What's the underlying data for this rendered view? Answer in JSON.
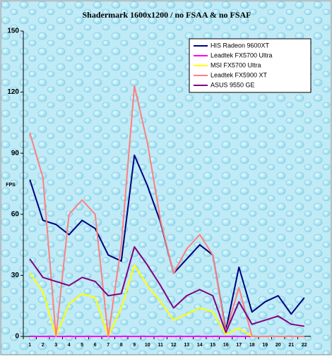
{
  "chart_data": {
    "type": "line",
    "title": "Shadermark 1600x1200 / no FSAA & no FSAF",
    "y_label": "FPS",
    "categories": [
      "1",
      "2",
      "3",
      "4",
      "5",
      "6",
      "7",
      "8",
      "9",
      "10",
      "11",
      "12",
      "13",
      "14",
      "15",
      "16",
      "17",
      "18",
      "19",
      "20",
      "21",
      "22"
    ],
    "ylim": [
      0,
      150
    ],
    "yticks": [
      0,
      30,
      60,
      90,
      120,
      150
    ],
    "legend": "top-right",
    "series": [
      {
        "name": "HIS Radeon 9600XT",
        "color": "#000080",
        "values": [
          77,
          57,
          55,
          50,
          57,
          53,
          40,
          37,
          89,
          74,
          56,
          31,
          38,
          45,
          40,
          3,
          34,
          12,
          17,
          20,
          11,
          19
        ]
      },
      {
        "name": "Leadtek FX5700 Ultra",
        "color": "#ff00ff",
        "values": [
          0,
          0,
          0,
          0,
          0,
          0,
          0,
          0,
          0,
          0,
          0,
          0,
          0,
          0,
          0,
          0,
          0,
          0,
          0,
          0,
          0,
          0
        ]
      },
      {
        "name": "MSI FX5700 Ultra",
        "color": "#ffff00",
        "values": [
          31,
          22,
          0,
          16,
          21,
          19,
          0,
          14,
          35,
          25,
          17,
          8,
          11,
          14,
          12,
          1,
          4,
          0,
          0,
          0,
          0,
          0
        ]
      },
      {
        "name": "Leadtek FX5900 XT",
        "color": "#ff8080",
        "values": [
          100,
          78,
          0,
          60,
          67,
          60,
          0,
          45,
          123,
          95,
          57,
          31,
          43,
          50,
          40,
          2,
          24,
          0,
          0,
          0,
          0,
          0
        ]
      },
      {
        "name": "ASUS 9550 GE",
        "color": "#800080",
        "values": [
          38,
          29,
          27,
          25,
          29,
          27,
          20,
          21,
          44,
          35,
          25,
          14,
          20,
          23,
          20,
          2,
          17,
          6,
          8,
          10,
          6,
          5
        ]
      }
    ]
  }
}
